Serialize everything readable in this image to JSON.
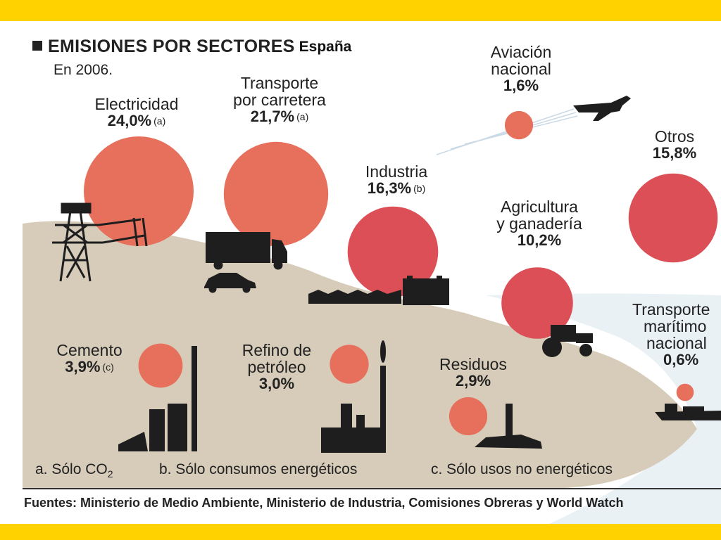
{
  "chart_data": {
    "type": "bubble",
    "title": "EMISIONES POR SECTORES",
    "region": "España",
    "subtitle": "En 2006.",
    "unit": "%",
    "sectors": [
      {
        "name_lines": [
          "Electricidad"
        ],
        "value": 24.0,
        "value_label": "24,0%",
        "note": "(a)"
      },
      {
        "name_lines": [
          "Transporte",
          "por carretera"
        ],
        "value": 21.7,
        "value_label": "21,7%",
        "note": "(a)"
      },
      {
        "name_lines": [
          "Industria"
        ],
        "value": 16.3,
        "value_label": "16,3%",
        "note": "(b)"
      },
      {
        "name_lines": [
          "Otros"
        ],
        "value": 15.8,
        "value_label": "15,8%",
        "note": ""
      },
      {
        "name_lines": [
          "Agricultura",
          "y ganadería"
        ],
        "value": 10.2,
        "value_label": "10,2%",
        "note": ""
      },
      {
        "name_lines": [
          "Cemento"
        ],
        "value": 3.9,
        "value_label": "3,9%",
        "note": "(c)"
      },
      {
        "name_lines": [
          "Refino de",
          "petróleo"
        ],
        "value": 3.0,
        "value_label": "3,0%",
        "note": ""
      },
      {
        "name_lines": [
          "Residuos"
        ],
        "value": 2.9,
        "value_label": "2,9%",
        "note": ""
      },
      {
        "name_lines": [
          "Aviación",
          "nacional"
        ],
        "value": 1.6,
        "value_label": "1,6%",
        "note": ""
      },
      {
        "name_lines": [
          "Transporte",
          "marítimo",
          "nacional"
        ],
        "value": 0.6,
        "value_label": "0,6%",
        "note": ""
      }
    ],
    "footnotes": {
      "a": "a. Sólo CO",
      "a_sub": "2",
      "b": "b. Sólo consumos energéticos",
      "c": "c. Sólo usos no energéticos"
    },
    "sources": "Fuentes: Ministerio de Medio Ambiente, Ministerio de Industria, Comisiones Obreras y World Watch",
    "colors": {
      "band": "#ffd200",
      "bubble_light": "#e6705c",
      "bubble_dark": "#dc4f57",
      "land": "#d7ccb9",
      "sea": "#e9f1f5",
      "icons": "#1e1e1e"
    }
  }
}
